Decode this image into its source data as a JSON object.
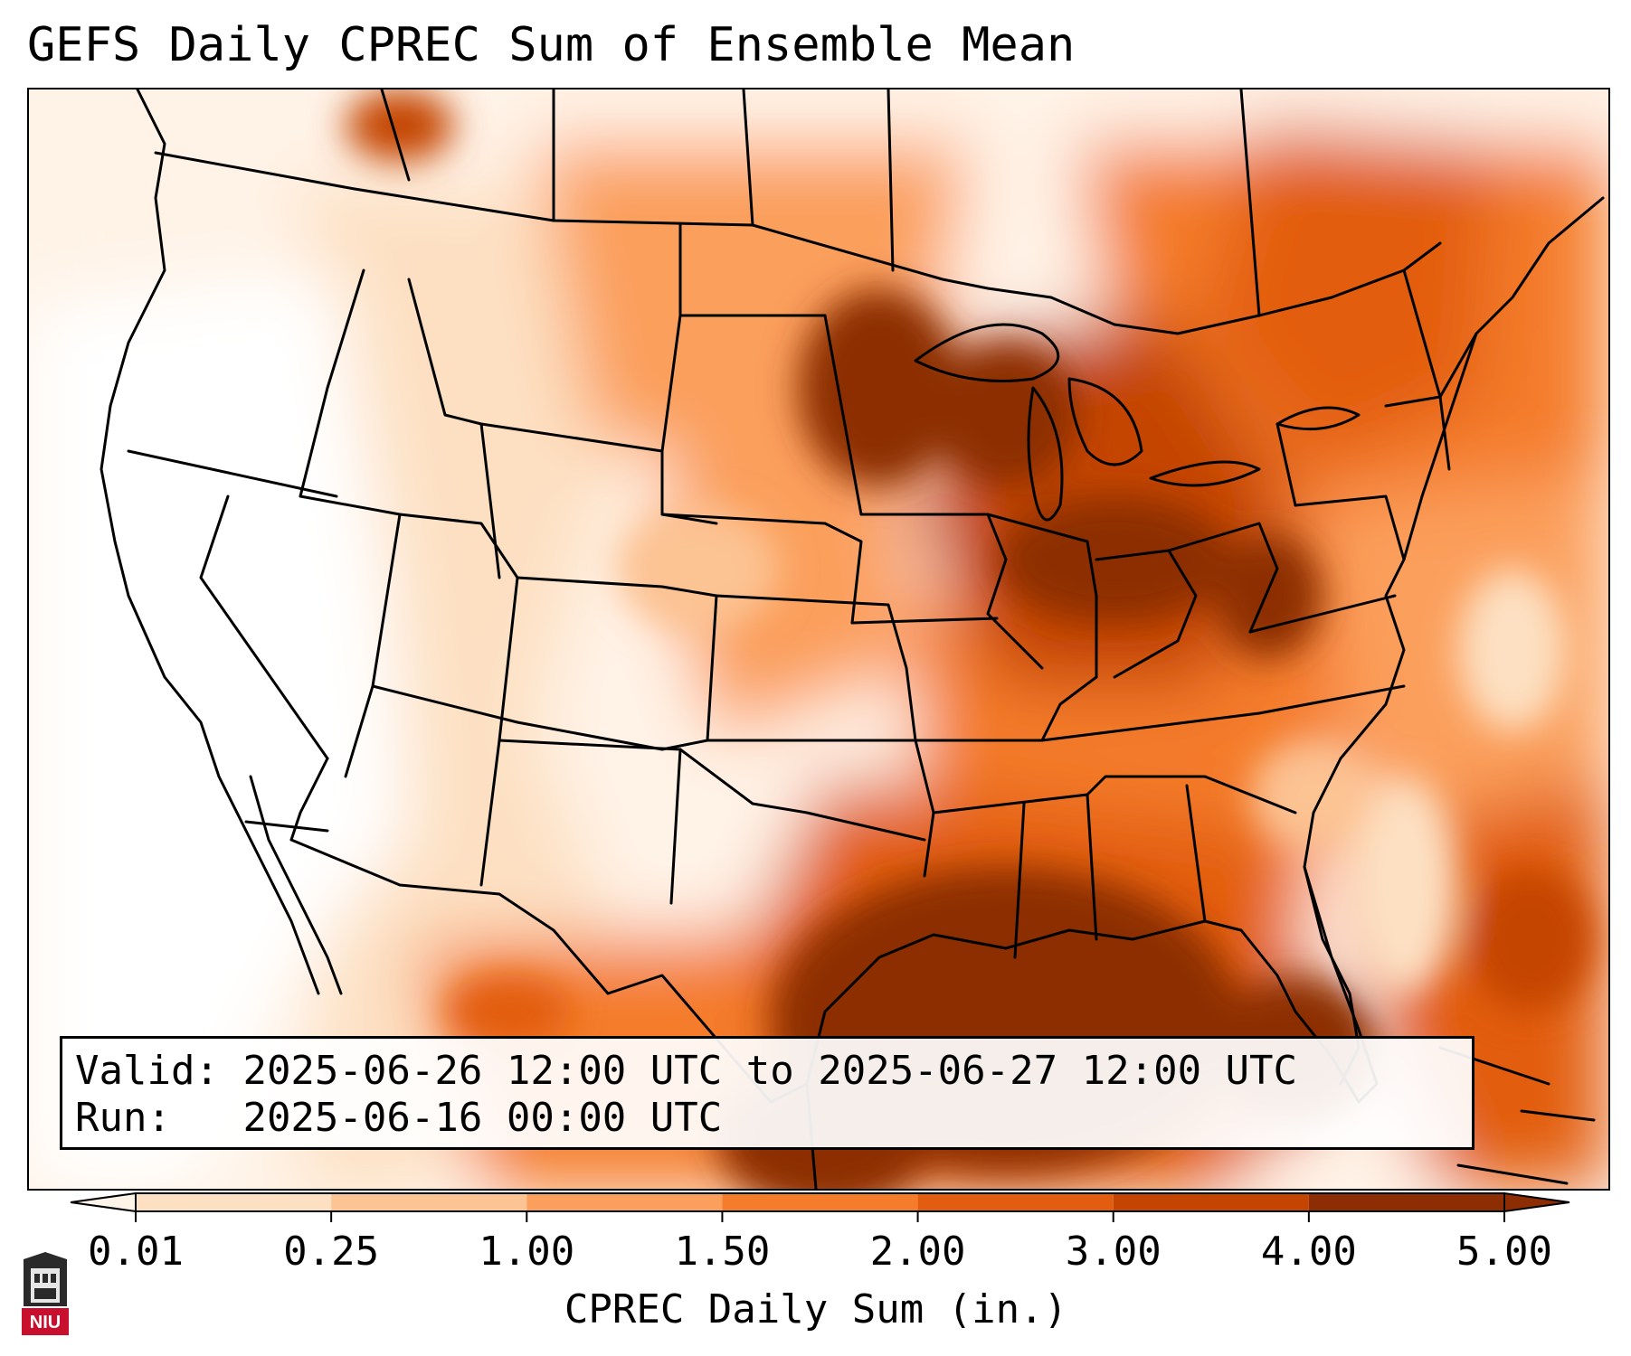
{
  "title": "GEFS Daily CPREC Sum of Ensemble Mean",
  "info": {
    "valid_label": "Valid:",
    "valid_value": "2025-06-26 12:00 UTC to 2025-06-27 12:00 UTC",
    "run_label": "Run:",
    "run_value": "2025-06-16 00:00 UTC"
  },
  "colorbar": {
    "label": "CPREC Daily Sum (in.)",
    "ticks": [
      "0.01",
      "0.25",
      "1.00",
      "1.50",
      "2.00",
      "3.00",
      "4.00",
      "5.00"
    ],
    "colors": [
      "#fff4e8",
      "#fde0c2",
      "#fcc393",
      "#fb9f5c",
      "#f47c2b",
      "#e25d0f",
      "#c44502",
      "#8c2d04"
    ],
    "extend": "both"
  },
  "colors": {
    "min": "#fff4e8",
    "max": "#8c2d04",
    "border": "#000000"
  },
  "logo": {
    "text": "NIU",
    "color": "#c8102e"
  }
}
